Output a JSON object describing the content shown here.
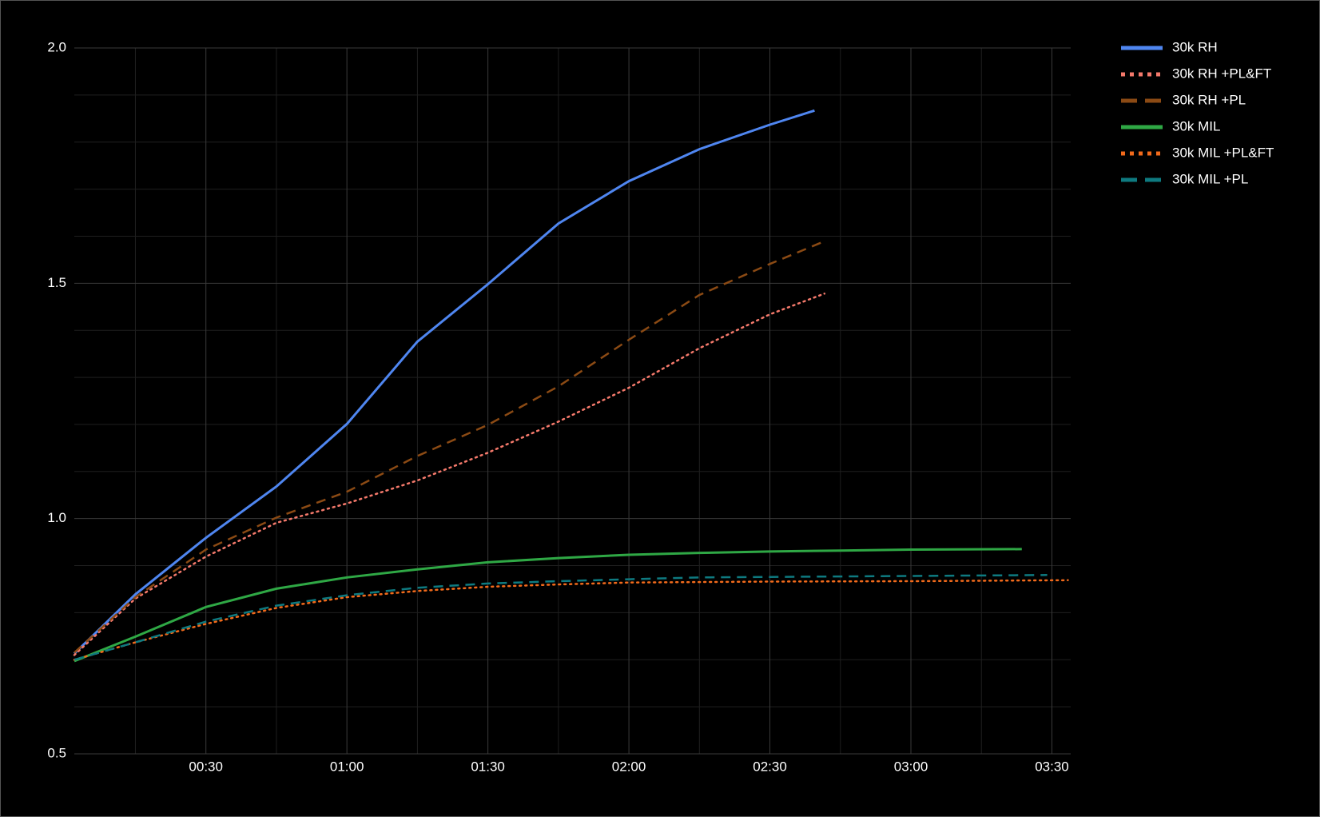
{
  "chart_data": {
    "type": "line",
    "xlim": [
      2,
      214
    ],
    "ylim": [
      0.5,
      2.0
    ],
    "xticks": [
      {
        "value": 30,
        "label": "00:30"
      },
      {
        "value": 60,
        "label": "01:00"
      },
      {
        "value": 90,
        "label": "01:30"
      },
      {
        "value": 120,
        "label": "02:00"
      },
      {
        "value": 150,
        "label": "02:30"
      },
      {
        "value": 180,
        "label": "03:00"
      },
      {
        "value": 210,
        "label": "03:30"
      }
    ],
    "yticks": [
      {
        "value": 0.5,
        "label": "0.5"
      },
      {
        "value": 1,
        "label": "1.0"
      },
      {
        "value": 1.5,
        "label": "1.5"
      },
      {
        "value": 2,
        "label": "2.0"
      }
    ],
    "xminor": [
      15,
      45,
      75,
      105,
      135,
      165,
      195
    ],
    "yminor": [
      0.6,
      0.7,
      0.8,
      0.9,
      1.1,
      1.2,
      1.3,
      1.4,
      1.6,
      1.7,
      1.8,
      1.9
    ],
    "grid": true,
    "legend": "right",
    "series": [
      {
        "name": "30k RH",
        "color": "#4f86f0",
        "style": "solid",
        "x": [
          2,
          15,
          30,
          45,
          60,
          75,
          90,
          105,
          120,
          135,
          150,
          159.5
        ],
        "values": [
          0.713,
          0.839,
          0.959,
          1.068,
          1.201,
          1.376,
          1.498,
          1.627,
          1.717,
          1.785,
          1.837,
          1.867
        ]
      },
      {
        "name": "30k RH +PL&FT",
        "color": "#f4796b",
        "style": "dotted",
        "x": [
          2,
          15,
          30,
          45,
          60,
          75,
          90,
          105,
          120,
          135,
          150,
          161.6
        ],
        "values": [
          0.71,
          0.83,
          0.919,
          0.991,
          1.032,
          1.081,
          1.14,
          1.206,
          1.278,
          1.362,
          1.434,
          1.478
        ]
      },
      {
        "name": "30k RH +PL",
        "color": "#8b4a14",
        "style": "dashed",
        "x": [
          2,
          15,
          30,
          45,
          60,
          75,
          90,
          105,
          120,
          135,
          150,
          162
        ],
        "values": [
          0.715,
          0.833,
          0.934,
          1.002,
          1.057,
          1.133,
          1.199,
          1.281,
          1.38,
          1.475,
          1.541,
          1.591
        ]
      },
      {
        "name": "30k MIL",
        "color": "#2fa845",
        "style": "solid",
        "x": [
          2,
          15,
          30,
          45,
          60,
          75,
          90,
          105,
          120,
          135,
          150,
          165,
          180,
          203.6
        ],
        "values": [
          0.697,
          0.749,
          0.812,
          0.851,
          0.875,
          0.892,
          0.907,
          0.916,
          0.923,
          0.927,
          0.93,
          0.932,
          0.934,
          0.935
        ]
      },
      {
        "name": "30k MIL +PL&FT",
        "color": "#f26a1b",
        "style": "dotted",
        "x": [
          2,
          15,
          30,
          45,
          60,
          75,
          90,
          105,
          120,
          150,
          180,
          213.4
        ],
        "values": [
          0.7,
          0.737,
          0.776,
          0.81,
          0.833,
          0.846,
          0.855,
          0.86,
          0.864,
          0.866,
          0.867,
          0.869
        ]
      },
      {
        "name": "30k MIL +PL",
        "color": "#0e7a80",
        "style": "dashed",
        "x": [
          2,
          15,
          30,
          45,
          60,
          75,
          90,
          105,
          120,
          135,
          150,
          180,
          209
        ],
        "values": [
          0.7,
          0.737,
          0.781,
          0.815,
          0.837,
          0.853,
          0.862,
          0.867,
          0.871,
          0.875,
          0.876,
          0.878,
          0.88
        ]
      }
    ]
  }
}
